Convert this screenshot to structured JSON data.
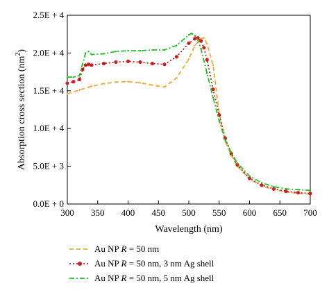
{
  "chart_data": {
    "type": "line",
    "xlabel": "Wavelength (nm)",
    "ylabel": "Absorption cross section (nm²)",
    "xlim": [
      300,
      700
    ],
    "ylim": [
      0,
      25000
    ],
    "xticks": [
      300,
      350,
      400,
      450,
      500,
      550,
      600,
      650,
      700
    ],
    "xtick_labels": [
      "300",
      "350",
      "400",
      "450",
      "500",
      "550",
      "600",
      "650",
      "700"
    ],
    "yticks": [
      0,
      5000,
      10000,
      15000,
      20000,
      25000
    ],
    "ytick_labels": [
      "0.0E + 0",
      "5.0E + 3",
      "1.0E + 4",
      "1.5E + 4",
      "2.0E + 4",
      "2.5E + 4"
    ],
    "grid": false,
    "legend_position": "bottom",
    "series": [
      {
        "name": "Au NP R = 50 nm",
        "color": "#F0A830",
        "style": "dash",
        "x": [
          300,
          320,
          340,
          360,
          380,
          400,
          420,
          440,
          460,
          480,
          500,
          510,
          520,
          525,
          530,
          540,
          550,
          560,
          570,
          580,
          600,
          620,
          640,
          660,
          680,
          700
        ],
        "y": [
          14600,
          15100,
          15600,
          15950,
          16150,
          16200,
          16050,
          15750,
          15500,
          16700,
          19200,
          21000,
          21900,
          22000,
          21200,
          18400,
          12000,
          8300,
          6400,
          5000,
          3300,
          2400,
          1900,
          1600,
          1400,
          1300
        ]
      },
      {
        "name": "Au NP R = 50 nm, 3 nm Ag shell",
        "color": "#CC2020",
        "style": "dot-marker",
        "x": [
          300,
          310,
          320,
          325,
          330,
          335,
          340,
          360,
          380,
          400,
          420,
          440,
          460,
          480,
          500,
          510,
          515,
          520,
          525,
          530,
          540,
          550,
          560,
          570,
          580,
          600,
          620,
          640,
          660,
          680,
          700
        ],
        "y": [
          16000,
          16200,
          16500,
          17800,
          18400,
          18500,
          18400,
          18600,
          18800,
          18900,
          18800,
          18600,
          18500,
          19500,
          21300,
          21900,
          22000,
          21600,
          20700,
          19100,
          15200,
          11800,
          8700,
          6700,
          5200,
          3400,
          2500,
          2000,
          1700,
          1500,
          1400
        ]
      },
      {
        "name": "Au NP R = 50 nm, 5 nm Ag shell",
        "color": "#20C020",
        "style": "dash-dot",
        "x": [
          300,
          310,
          320,
          325,
          330,
          335,
          340,
          360,
          380,
          400,
          420,
          440,
          460,
          480,
          500,
          505,
          510,
          515,
          520,
          530,
          540,
          550,
          560,
          570,
          580,
          600,
          620,
          640,
          660,
          680,
          700
        ],
        "y": [
          16800,
          16800,
          17000,
          18500,
          20000,
          20200,
          19800,
          19900,
          20200,
          20300,
          20300,
          20400,
          20400,
          21000,
          22400,
          22600,
          22300,
          21700,
          20600,
          17300,
          14100,
          11000,
          8500,
          6800,
          5400,
          3700,
          2800,
          2300,
          2000,
          1900,
          1800
        ]
      }
    ]
  },
  "legend": {
    "items": [
      {
        "prefix": "Au NP ",
        "var": "R",
        "suffix": " = 50 nm"
      },
      {
        "prefix": "Au NP ",
        "var": "R",
        "suffix": " = 50 nm, 3 nm Ag shell"
      },
      {
        "prefix": "Au NP ",
        "var": "R",
        "suffix": " = 50 nm, 5 nm Ag shell"
      }
    ]
  },
  "ylabel_parts": {
    "main": "Absorption cross section (nm",
    "sup": "2",
    "close": ")"
  }
}
